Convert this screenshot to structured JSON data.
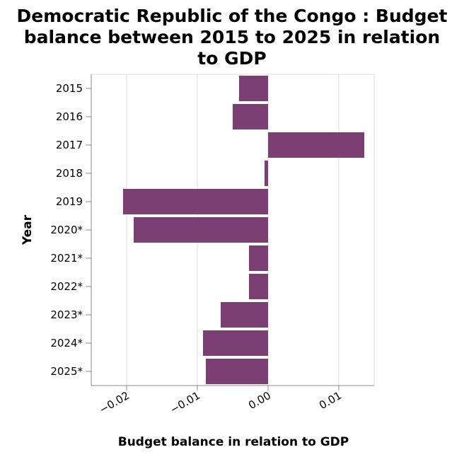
{
  "chart_data": {
    "type": "bar",
    "orientation": "horizontal",
    "title": [
      "Democratic Republic of the Congo : Budget",
      "balance between 2015 to 2025 in relation",
      "to GDP"
    ],
    "xlabel": "Budget balance in relation to GDP",
    "ylabel": "Year",
    "categories": [
      "2015",
      "2016",
      "2017",
      "2018",
      "2019",
      "2020*",
      "2021*",
      "2022*",
      "2023*",
      "2024*",
      "2025*"
    ],
    "values": [
      -0.0041,
      -0.005,
      0.0136,
      -0.0005,
      -0.0205,
      -0.019,
      -0.0027,
      -0.0027,
      -0.0067,
      -0.0092,
      -0.0088
    ],
    "xlim": [
      -0.025,
      0.015
    ],
    "xticks": [
      -0.02,
      -0.01,
      0.0,
      0.01
    ],
    "xtick_labels": [
      "−0.02",
      "−0.01",
      "0.00",
      "0.01"
    ],
    "grid": true,
    "bar_color": "#7b3f73"
  }
}
